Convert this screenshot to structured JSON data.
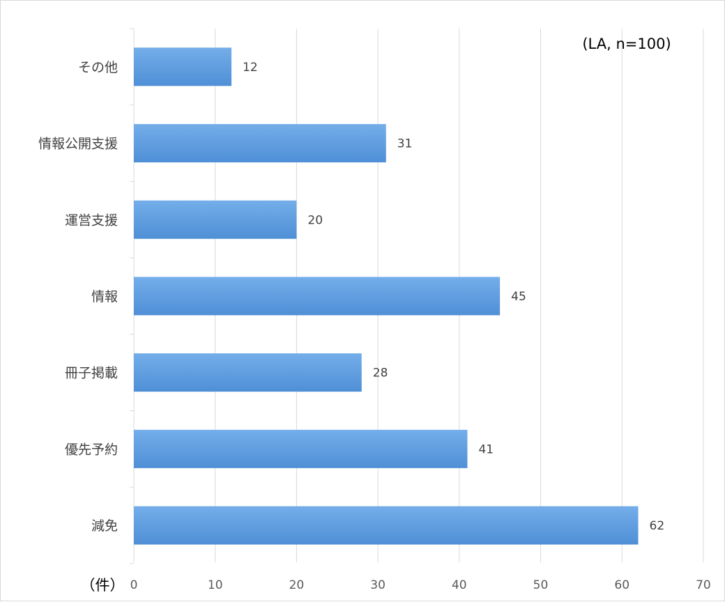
{
  "chart_data": {
    "type": "bar",
    "orientation": "horizontal",
    "categories": [
      "その他",
      "情報公開支援",
      "運営支援",
      "情報",
      "冊子掲載",
      "優先予約",
      "減免"
    ],
    "values": [
      12,
      31,
      20,
      45,
      28,
      41,
      62
    ],
    "xlim": [
      0,
      70
    ],
    "x_ticks": [
      0,
      10,
      20,
      30,
      40,
      50,
      60,
      70
    ],
    "x_unit_label": "（件）",
    "annotation": "(LA, n=100)",
    "grid": true,
    "bar_color": "#4f8fd6",
    "bar_color_light": "#74aeea",
    "grid_color": "#d9d9d9",
    "data_labels": true
  }
}
